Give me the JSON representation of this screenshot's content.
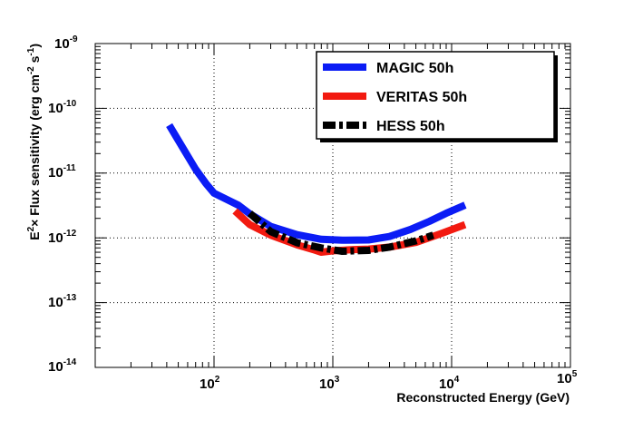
{
  "chart_data": {
    "type": "line",
    "xscale": "log",
    "yscale": "log",
    "xlim": [
      10,
      100000
    ],
    "ylim": [
      1e-14,
      1e-09
    ],
    "grid": true,
    "xlabel": "Reconstructed Energy (GeV)",
    "ylabel": {
      "prefix": "E",
      "prefix_sup": "2",
      "times": "×",
      "text": " Flux sensitivity (erg cm",
      "sup1": "-2",
      "mid": " s",
      "sup2": "-1",
      "suffix": ")"
    },
    "x_ticks": [
      {
        "value": 100,
        "base": "10",
        "exp": "2"
      },
      {
        "value": 1000,
        "base": "10",
        "exp": "3"
      },
      {
        "value": 10000,
        "base": "10",
        "exp": "4"
      },
      {
        "value": 100000,
        "base": "10",
        "exp": "5"
      }
    ],
    "y_ticks": [
      {
        "value": 1e-14,
        "base": "10",
        "exp": "-14"
      },
      {
        "value": 1e-13,
        "base": "10",
        "exp": "-13"
      },
      {
        "value": 1e-12,
        "base": "10",
        "exp": "-12"
      },
      {
        "value": 1e-11,
        "base": "10",
        "exp": "-11"
      },
      {
        "value": 1e-10,
        "base": "10",
        "exp": "-10"
      },
      {
        "value": 1e-09,
        "base": "10",
        "exp": "-9"
      }
    ],
    "legend_position": "top-right",
    "series": [
      {
        "name": "MAGIC 50h",
        "color": "#0b1cf5",
        "style": "solid",
        "x": [
          42,
          55,
          70,
          85,
          100,
          125,
          160,
          200,
          300,
          500,
          800,
          1200,
          2000,
          3000,
          4500,
          6500,
          9000,
          13000
        ],
        "y": [
          5.5e-11,
          2.4e-11,
          1.15e-11,
          7e-12,
          4.9e-12,
          4e-12,
          3.2e-12,
          2.35e-12,
          1.5e-12,
          1.12e-12,
          9.5e-13,
          9.2e-13,
          9.3e-13,
          1.05e-12,
          1.35e-12,
          1.8e-12,
          2.4e-12,
          3.2e-12
        ]
      },
      {
        "name": "VERITAS 50h",
        "color": "#f21a10",
        "style": "solid",
        "x": [
          150,
          200,
          300,
          500,
          700,
          800,
          1000,
          1500,
          2000,
          3000,
          5000,
          8000,
          13000
        ],
        "y": [
          2.6e-12,
          1.6e-12,
          1.1e-12,
          7.8e-13,
          6.5e-13,
          6e-13,
          6.3e-13,
          6.6e-13,
          6.7e-13,
          7.2e-13,
          8.5e-13,
          1.15e-12,
          1.6e-12
        ]
      },
      {
        "name": "HESS 50h",
        "color": "#000000",
        "style": "dash-dot",
        "x": [
          200,
          300,
          500,
          800,
          1200,
          2000,
          3000,
          5000,
          7000
        ],
        "y": [
          2.4e-12,
          1.25e-12,
          8.4e-13,
          7e-13,
          6.2e-13,
          6.4e-13,
          7.2e-13,
          9e-13,
          1.1e-12
        ]
      }
    ]
  }
}
